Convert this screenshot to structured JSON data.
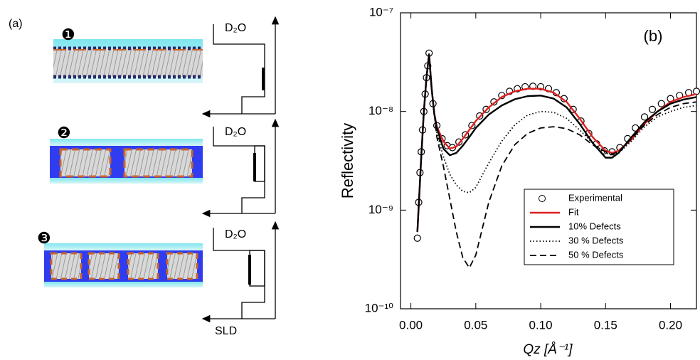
{
  "schematic": {
    "label": "(a)",
    "panels": [
      {
        "number": "❶",
        "top": "D₂O"
      },
      {
        "number": "❷",
        "top": "D₂O"
      },
      {
        "number": "❸",
        "top": "D₂O"
      }
    ],
    "axis_label": "SLD"
  },
  "chart_data": {
    "type": "line",
    "annotation": "(b)",
    "x_label": "Qz [Å⁻¹]",
    "y_label": "Reflectivity",
    "xlim": [
      -0.008,
      0.22
    ],
    "xticks": [
      {
        "value": 0,
        "label": "0.00"
      },
      0.05,
      {
        "value": 0.1,
        "label": "0.10"
      },
      0.15,
      {
        "value": 0.2,
        "label": "0.20"
      }
    ],
    "ylim": [
      1e-10,
      1e-07
    ],
    "log_y": true,
    "yticks": [
      {
        "value": 1e-10,
        "label": "10⁻¹⁰"
      },
      {
        "value": 1e-09,
        "label": "10⁻⁹"
      },
      {
        "value": 1e-08,
        "label": "10⁻⁸"
      },
      {
        "value": 1e-07,
        "label": "10⁻⁷"
      }
    ],
    "legend": "lower right",
    "x": [
      0.005,
      0.008,
      0.01,
      0.012,
      0.014,
      0.016,
      0.018,
      0.02,
      0.025,
      0.03,
      0.035,
      0.04,
      0.045,
      0.05,
      0.06,
      0.07,
      0.08,
      0.09,
      0.1,
      0.11,
      0.12,
      0.13,
      0.14,
      0.15,
      0.155,
      0.16,
      0.17,
      0.18,
      0.19,
      0.2,
      0.21,
      0.22
    ],
    "series": [
      {
        "name": "Experimental",
        "color": "#000000",
        "marker": "circle",
        "x": [
          0.005,
          0.006,
          0.007,
          0.008,
          0.009,
          0.01,
          0.011,
          0.012,
          0.013,
          0.014,
          0.017,
          0.02,
          0.024,
          0.028,
          0.032,
          0.037,
          0.042,
          0.047,
          0.053,
          0.058,
          0.064,
          0.07,
          0.076,
          0.082,
          0.088,
          0.094,
          0.1,
          0.106,
          0.112,
          0.118,
          0.125,
          0.131,
          0.137,
          0.143,
          0.149,
          0.155,
          0.161,
          0.167,
          0.173,
          0.18,
          0.186,
          0.193,
          0.2,
          0.207,
          0.214,
          0.22
        ],
        "values": [
          5.2e-10,
          1.2e-09,
          2.4e-09,
          3.9e-09,
          6.5e-09,
          1e-08,
          1.5e-08,
          2.2e-08,
          2.9e-08,
          3.9e-08,
          1.2e-08,
          7.2e-09,
          5.3e-09,
          4.5e-09,
          4.3e-09,
          4.9e-09,
          5.8e-09,
          7.2e-09,
          9e-09,
          1.05e-08,
          1.25e-08,
          1.45e-08,
          1.6e-08,
          1.7e-08,
          1.78e-08,
          1.8e-08,
          1.78e-08,
          1.7e-08,
          1.55e-08,
          1.35e-08,
          1.05e-08,
          8e-09,
          6e-09,
          4.7e-09,
          4e-09,
          3.9e-09,
          4.3e-09,
          5.3e-09,
          6.8e-09,
          8.8e-09,
          1.05e-08,
          1.2e-08,
          1.35e-08,
          1.45e-08,
          1.55e-08,
          1.6e-08
        ]
      },
      {
        "name": "Fit",
        "color": "#e02020",
        "dash": "solid",
        "values": [
          6e-10,
          3.5e-09,
          1e-08,
          2.2e-08,
          3.8e-08,
          1.7e-08,
          9.5e-09,
          7e-09,
          5e-09,
          4.2e-09,
          4.4e-09,
          5.3e-09,
          6.5e-09,
          8e-09,
          1.1e-08,
          1.4e-08,
          1.6e-08,
          1.7e-08,
          1.7e-08,
          1.55e-08,
          1.25e-08,
          8.5e-09,
          5.5e-09,
          4e-09,
          3.8e-09,
          4e-09,
          5.2e-09,
          7.5e-09,
          1e-08,
          1.25e-08,
          1.4e-08,
          1.5e-08
        ]
      },
      {
        "name": "10% Defects",
        "color": "#000000",
        "dash": "solid",
        "values": [
          6e-10,
          3.5e-09,
          1e-08,
          2.2e-08,
          3.8e-08,
          1.7e-08,
          9.5e-09,
          6.8e-09,
          4.2e-09,
          3.6e-09,
          3.8e-09,
          4.5e-09,
          5.5e-09,
          6.8e-09,
          9.3e-09,
          1.15e-08,
          1.33e-08,
          1.43e-08,
          1.45e-08,
          1.35e-08,
          1.1e-08,
          7.5e-09,
          4.8e-09,
          3.4e-09,
          3.4e-09,
          3.8e-09,
          5.5e-09,
          7.8e-09,
          1e-08,
          1.2e-08,
          1.32e-08,
          1.4e-08
        ]
      },
      {
        "name": "30 % Defects",
        "color": "#000000",
        "dash": "dotted",
        "values": [
          6e-10,
          3.5e-09,
          1e-08,
          2.2e-08,
          3.8e-08,
          1.7e-08,
          9.5e-09,
          6e-09,
          3.5e-09,
          2.3e-09,
          1.8e-09,
          1.55e-09,
          1.5e-09,
          1.7e-09,
          3e-09,
          5e-09,
          7.3e-09,
          9.2e-09,
          1e-08,
          9.8e-09,
          8.5e-09,
          6.5e-09,
          4.8e-09,
          3.8e-09,
          3.6e-09,
          3.8e-09,
          5e-09,
          7e-09,
          8.8e-09,
          1e-08,
          1.1e-08,
          1.15e-08
        ]
      },
      {
        "name": "50 % Defects",
        "color": "#000000",
        "dash": "dashed",
        "values": [
          6e-10,
          3.5e-09,
          1e-08,
          2.2e-08,
          3.8e-08,
          1.7e-08,
          9.5e-09,
          5.5e-09,
          2.8e-09,
          1.3e-09,
          6e-10,
          3.3e-10,
          2.6e-10,
          3.5e-10,
          1.2e-09,
          2.8e-09,
          4.6e-09,
          6e-09,
          6.8e-09,
          7e-09,
          6.7e-09,
          5.8e-09,
          4.6e-09,
          3.9e-09,
          3.7e-09,
          3.9e-09,
          5.3e-09,
          7.3e-09,
          9.3e-09,
          1.1e-08,
          1.2e-08,
          1.25e-08
        ]
      }
    ]
  }
}
